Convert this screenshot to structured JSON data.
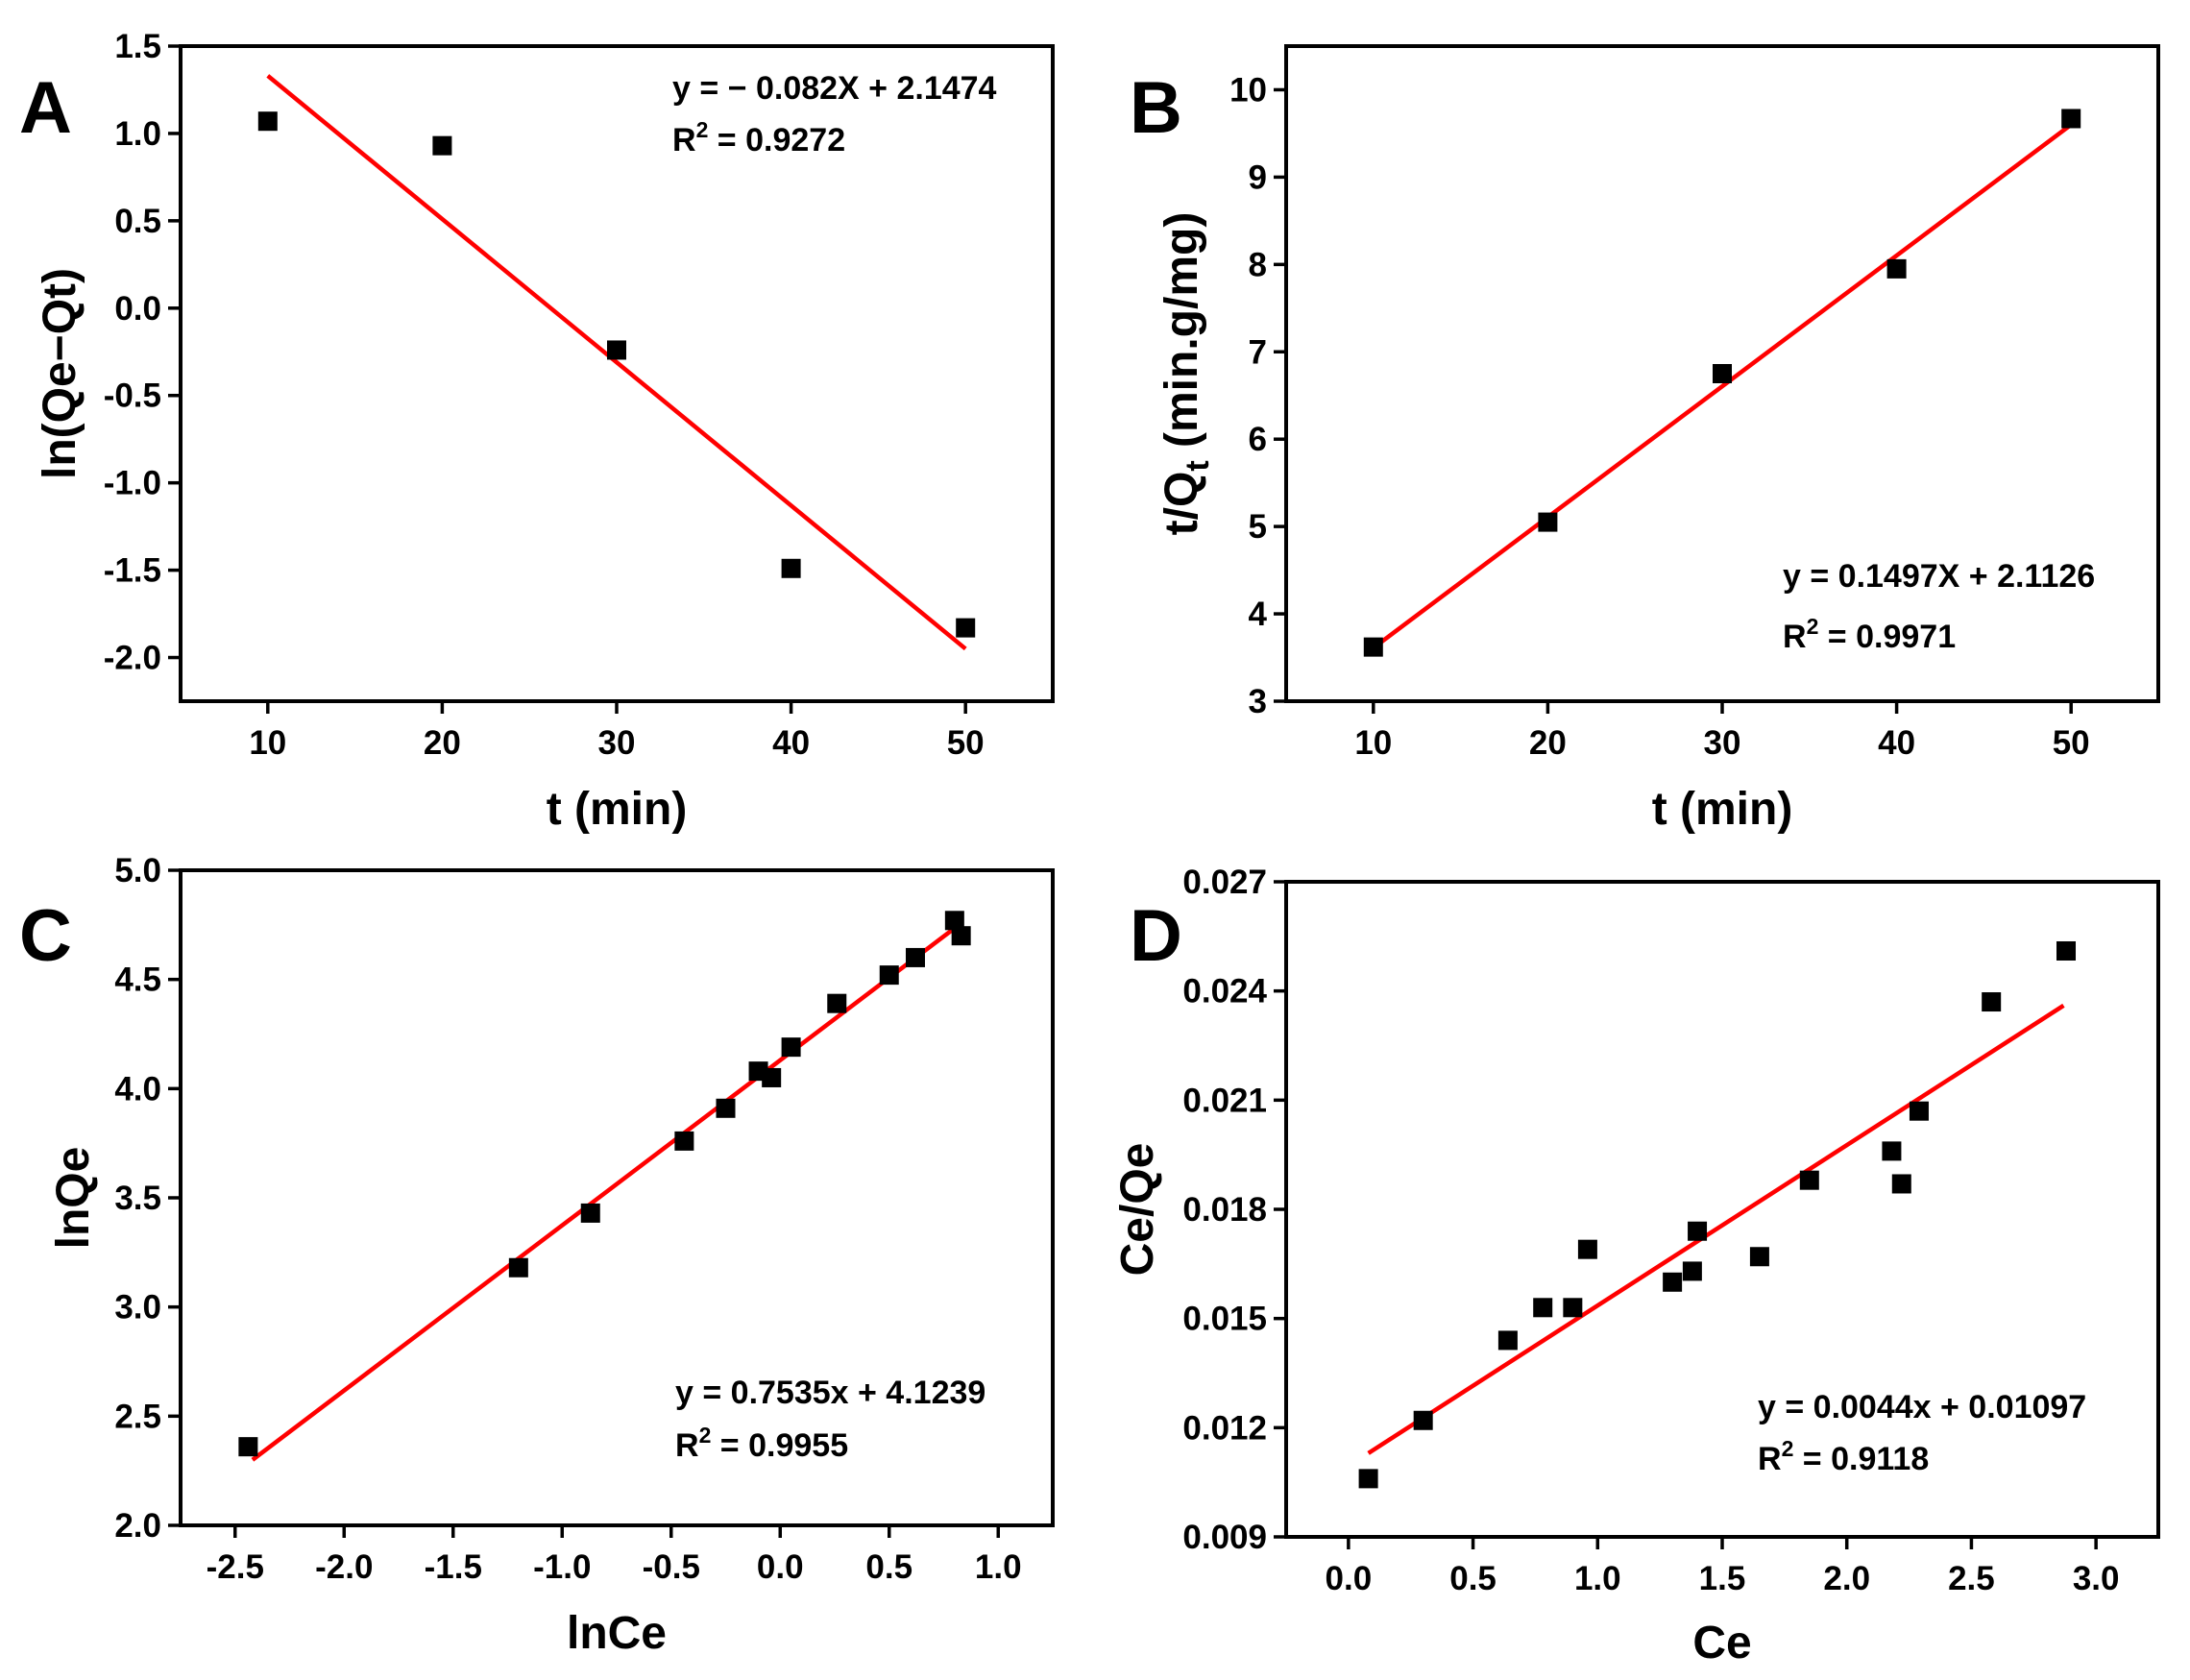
{
  "chart_data": [
    {
      "panel": "A",
      "type": "scatter",
      "xlabel": "t (min)",
      "ylabel": "ln(Qe−Qt)",
      "xlim": [
        5,
        55
      ],
      "ylim": [
        -2.25,
        1.5
      ],
      "x_ticks": [
        10,
        20,
        30,
        40,
        50
      ],
      "x_tick_labels": [
        "10",
        "20",
        "30",
        "40",
        "50"
      ],
      "y_ticks": [
        1.5,
        1.0,
        0.5,
        0.0,
        -0.5,
        -1.0,
        -1.5,
        -2.0
      ],
      "y_tick_labels": [
        "1.5",
        "1.0",
        "0.5",
        "0.0",
        "-0.5",
        "-1.0",
        "-1.5",
        "-2.0"
      ],
      "points": {
        "x": [
          10,
          20,
          30,
          40,
          50
        ],
        "y": [
          1.07,
          0.93,
          -0.24,
          -1.49,
          -1.83
        ]
      },
      "fit": {
        "x": [
          10,
          50
        ],
        "y": [
          1.33,
          -1.95
        ]
      },
      "equation": "y = − 0.082X + 2.1474",
      "r2_prefix": "R",
      "r2_sup": "2",
      "r2_value": " = 0.9272",
      "equation_pos": "top-right"
    },
    {
      "panel": "B",
      "type": "scatter",
      "xlabel": "t (min)",
      "ylabel_main": "t/Q",
      "ylabel_sub": "t",
      "ylabel_unit": " (min.g/mg)",
      "xlim": [
        5,
        55
      ],
      "ylim": [
        3,
        10.5
      ],
      "x_ticks": [
        10,
        20,
        30,
        40,
        50
      ],
      "x_tick_labels": [
        "10",
        "20",
        "30",
        "40",
        "50"
      ],
      "y_ticks": [
        3,
        4,
        5,
        6,
        7,
        8,
        9,
        10
      ],
      "y_tick_labels": [
        "3",
        "4",
        "5",
        "6",
        "7",
        "8",
        "9",
        "10"
      ],
      "points": {
        "x": [
          10,
          20,
          30,
          40,
          50
        ],
        "y": [
          3.62,
          5.05,
          6.75,
          7.95,
          9.67
        ]
      },
      "fit": {
        "x": [
          10,
          50
        ],
        "y": [
          3.61,
          9.6
        ]
      },
      "equation": "y = 0.1497X + 2.1126",
      "r2_prefix": "R",
      "r2_sup": "2",
      "r2_value": " = 0.9971",
      "equation_pos": "bottom-right"
    },
    {
      "panel": "C",
      "type": "scatter",
      "xlabel": "lnCe",
      "ylabel": "lnQe",
      "xlim": [
        -2.75,
        1.25
      ],
      "ylim": [
        2.0,
        5.0
      ],
      "x_ticks": [
        -2.5,
        -2.0,
        -1.5,
        -1.0,
        -0.5,
        0.0,
        0.5,
        1.0
      ],
      "x_tick_labels": [
        "-2.5",
        "-2.0",
        "-1.5",
        "-1.0",
        "-0.5",
        "0.0",
        "0.5",
        "1.0"
      ],
      "y_ticks": [
        5.0,
        4.5,
        4.0,
        3.5,
        3.0,
        2.5,
        2.0
      ],
      "y_tick_labels": [
        "5.0",
        "4.5",
        "4.0",
        "3.5",
        "3.0",
        "2.5",
        "2.0"
      ],
      "points": {
        "x": [
          -2.44,
          -1.2,
          -0.87,
          -0.44,
          -0.25,
          -0.1,
          -0.04,
          0.05,
          0.26,
          0.5,
          0.62,
          0.8,
          0.83
        ],
        "y": [
          2.36,
          3.18,
          3.43,
          3.76,
          3.91,
          4.08,
          4.05,
          4.19,
          4.39,
          4.52,
          4.6,
          4.77,
          4.7
        ]
      },
      "fit": {
        "x": [
          -2.42,
          0.82
        ],
        "y": [
          2.3,
          4.75
        ]
      },
      "equation": "y = 0.7535x + 4.1239",
      "r2_prefix": "R",
      "r2_sup": "2",
      "r2_value": " = 0.9955",
      "equation_pos": "bottom-right"
    },
    {
      "panel": "D",
      "type": "scatter",
      "xlabel": "Ce",
      "ylabel": "Ce/Qe",
      "xlim": [
        -0.25,
        3.25
      ],
      "ylim": [
        0.009,
        0.027
      ],
      "x_ticks": [
        0.0,
        0.5,
        1.0,
        1.5,
        2.0,
        2.5,
        3.0
      ],
      "x_tick_labels": [
        "0.0",
        "0.5",
        "1.0",
        "1.5",
        "2.0",
        "2.5",
        "3.0"
      ],
      "y_ticks": [
        0.027,
        0.024,
        0.021,
        0.018,
        0.015,
        0.012,
        0.009
      ],
      "y_tick_labels": [
        "0.027",
        "0.024",
        "0.021",
        "0.018",
        "0.015",
        "0.012",
        "0.009"
      ],
      "points": {
        "x": [
          0.08,
          0.3,
          0.64,
          0.78,
          0.9,
          0.96,
          1.3,
          1.38,
          1.4,
          1.65,
          1.85,
          2.18,
          2.22,
          2.29,
          2.58,
          2.88
        ],
        "y": [
          0.0106,
          0.0122,
          0.0144,
          0.0153,
          0.0153,
          0.0169,
          0.016,
          0.0163,
          0.0174,
          0.0167,
          0.0188,
          0.0196,
          0.0187,
          0.0207,
          0.0237,
          0.0251
        ]
      },
      "fit": {
        "x": [
          0.08,
          2.87
        ],
        "y": [
          0.0113,
          0.0236
        ]
      },
      "equation": "y = 0.0044x + 0.01097",
      "r2_prefix": "R",
      "r2_sup": "2",
      "r2_value": " = 0.9118",
      "equation_pos": "bottom-right"
    }
  ]
}
